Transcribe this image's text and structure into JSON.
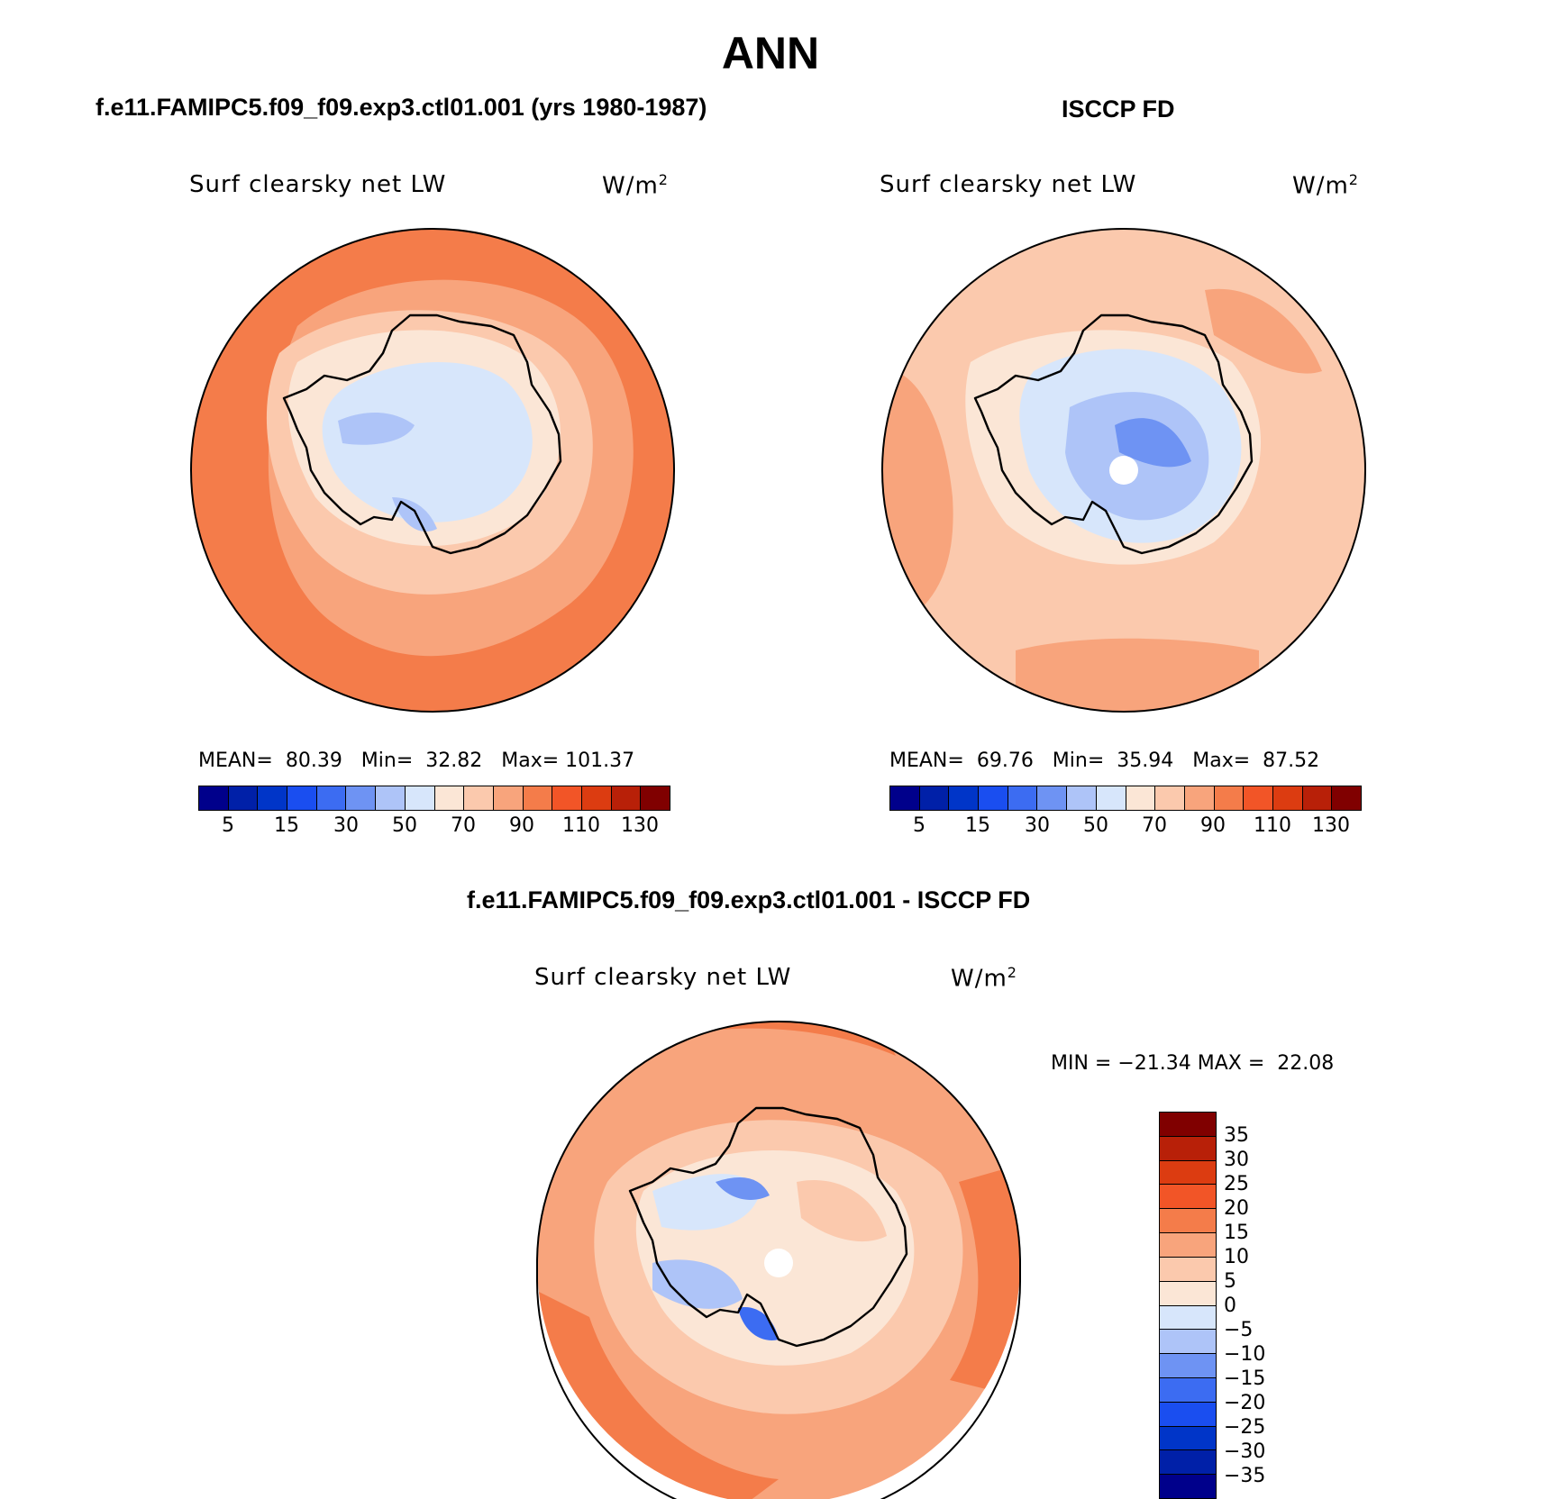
{
  "title": "ANN",
  "colors": {
    "blue_ramp": [
      "#00008b",
      "#0020a8",
      "#0035c8",
      "#1a4ef0",
      "#3c6cf2",
      "#6e93f3",
      "#aec4f8",
      "#d7e6fb"
    ],
    "red_ramp": [
      "#fbe6d6",
      "#fbc9ad",
      "#f8a47c",
      "#f47c4a",
      "#f25527",
      "#dc3c11",
      "#b82008",
      "#800000"
    ],
    "diff_ramp": [
      "#800000",
      "#b82008",
      "#dc3c11",
      "#f25527",
      "#f47c4a",
      "#f8a47c",
      "#fbc9ad",
      "#fbe6d6",
      "#d7e6fb",
      "#aec4f8",
      "#6e93f3",
      "#3c6cf2",
      "#1a4ef0",
      "#0035c8",
      "#0020a8",
      "#00008b"
    ]
  },
  "panels": {
    "model": {
      "heading": "f.e11.FAMIPC5.f09_f09.exp3.ctl01.001 (yrs 1980-1987)",
      "variable": "Surf clearsky net LW",
      "units": "W/m",
      "units_exp": "2",
      "mean_label": "MEAN=",
      "mean": "80.39",
      "min_label": "Min=",
      "min": "32.82",
      "max_label": "Max=",
      "max": "101.37",
      "ticks": [
        "5",
        "15",
        "30",
        "50",
        "70",
        "90",
        "110",
        "130"
      ]
    },
    "obs": {
      "heading": "ISCCP FD",
      "variable": "Surf clearsky net LW",
      "units": "W/m",
      "units_exp": "2",
      "mean_label": "MEAN=",
      "mean": "69.76",
      "min_label": "Min=",
      "min": "35.94",
      "max_label": "Max=",
      "max": "87.52",
      "ticks": [
        "5",
        "15",
        "30",
        "50",
        "70",
        "90",
        "110",
        "130"
      ]
    },
    "diff": {
      "heading": "f.e11.FAMIPC5.f09_f09.exp3.ctl01.001 - ISCCP FD",
      "variable": "Surf clearsky net LW",
      "units": "W/m",
      "units_exp": "2",
      "minmax": "MIN = −21.34 MAX =  22.08",
      "ticks": [
        "35",
        "30",
        "25",
        "20",
        "15",
        "10",
        "5",
        "0",
        "−5",
        "−10",
        "−15",
        "−20",
        "−25",
        "−30",
        "−35"
      ]
    }
  }
}
